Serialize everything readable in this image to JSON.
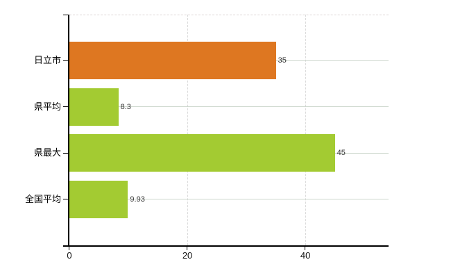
{
  "chart_data": {
    "type": "bar",
    "orientation": "horizontal",
    "title": "",
    "categories": [
      "日立市",
      "県平均",
      "県最大",
      "全国平均"
    ],
    "values": [
      35,
      8.3,
      45,
      9.93
    ],
    "value_labels": [
      "35",
      "8.3",
      "45",
      "9.93"
    ],
    "bar_colors": [
      "#de7721",
      "#a3cb32",
      "#a3cb32",
      "#a3cb32"
    ],
    "x_ticks": [
      0,
      20,
      40
    ],
    "x_tick_labels": [
      "0",
      "20",
      "40"
    ],
    "xlim": [
      0,
      54.1
    ],
    "grid": true,
    "legend": "none"
  },
  "colors": {
    "bar_orange": "#de7721",
    "bar_green": "#a3cb32",
    "axis_line": "#000000",
    "horizontal_gridline": "#ccd6cc",
    "vertical_gridline": "#d9d9d9",
    "top_border": "#ddd4d4",
    "background": "#ffffff"
  }
}
